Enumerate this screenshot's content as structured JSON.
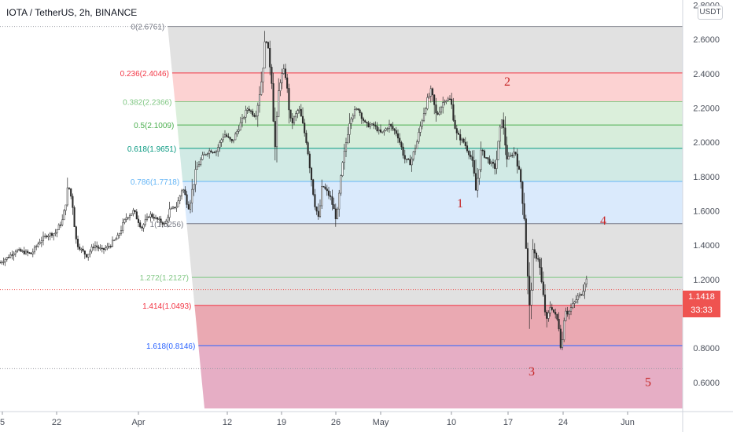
{
  "header": {
    "symbol": "IOTA / TetherUS, 2h, BINANCE"
  },
  "currency_button": "USDT",
  "price_label": {
    "price": "1.1418",
    "countdown": "33:33",
    "color": "#ef5350"
  },
  "chart_data": {
    "type": "candlestick",
    "symbol": "IOTA / TetherUS",
    "interval": "2h",
    "exchange": "BINANCE",
    "x_ticks": [
      "5",
      "22",
      "Apr",
      "12",
      "19",
      "26",
      "May",
      "10",
      "17",
      "24",
      "Jun"
    ],
    "y_ticks": [
      "2.8000",
      "2.6000",
      "2.4000",
      "2.2000",
      "2.0000",
      "1.8000",
      "1.6000",
      "1.4000",
      "1.2000",
      "1.0000",
      "0.8000",
      "0.6000"
    ],
    "ylim": [
      0.43,
      2.83
    ],
    "last_price": 1.1418,
    "price_path": [
      [
        0,
        1.3
      ],
      [
        10,
        1.33
      ],
      [
        20,
        1.37
      ],
      [
        30,
        1.36
      ],
      [
        40,
        1.35
      ],
      [
        50,
        1.42
      ],
      [
        60,
        1.46
      ],
      [
        70,
        1.47
      ],
      [
        80,
        1.55
      ],
      [
        87,
        1.75
      ],
      [
        92,
        1.65
      ],
      [
        97,
        1.42
      ],
      [
        102,
        1.38
      ],
      [
        110,
        1.34
      ],
      [
        120,
        1.4
      ],
      [
        130,
        1.37
      ],
      [
        140,
        1.4
      ],
      [
        150,
        1.45
      ],
      [
        160,
        1.56
      ],
      [
        170,
        1.6
      ],
      [
        180,
        1.5
      ],
      [
        190,
        1.58
      ],
      [
        200,
        1.55
      ],
      [
        210,
        1.52
      ],
      [
        215,
        1.6
      ],
      [
        225,
        1.63
      ],
      [
        232,
        1.74
      ],
      [
        240,
        1.62
      ],
      [
        250,
        1.85
      ],
      [
        258,
        1.92
      ],
      [
        265,
        1.95
      ],
      [
        275,
        1.95
      ],
      [
        285,
        2.05
      ],
      [
        295,
        2.0
      ],
      [
        305,
        2.1
      ],
      [
        315,
        2.2
      ],
      [
        325,
        2.15
      ],
      [
        332,
        2.35
      ],
      [
        338,
        2.62
      ],
      [
        345,
        2.4
      ],
      [
        350,
        1.95
      ],
      [
        355,
        2.35
      ],
      [
        362,
        2.43
      ],
      [
        370,
        2.1
      ],
      [
        380,
        2.2
      ],
      [
        390,
        2.0
      ],
      [
        400,
        1.65
      ],
      [
        405,
        1.55
      ],
      [
        410,
        1.75
      ],
      [
        420,
        1.68
      ],
      [
        428,
        1.55
      ],
      [
        435,
        1.85
      ],
      [
        445,
        2.15
      ],
      [
        455,
        2.2
      ],
      [
        465,
        2.1
      ],
      [
        475,
        2.1
      ],
      [
        485,
        2.05
      ],
      [
        495,
        2.1
      ],
      [
        505,
        2.05
      ],
      [
        515,
        1.9
      ],
      [
        522,
        1.88
      ],
      [
        530,
        2.0
      ],
      [
        540,
        2.2
      ],
      [
        548,
        2.3
      ],
      [
        555,
        2.15
      ],
      [
        565,
        2.25
      ],
      [
        573,
        2.25
      ],
      [
        580,
        2.05
      ],
      [
        590,
        2.0
      ],
      [
        600,
        1.9
      ],
      [
        605,
        1.72
      ],
      [
        612,
        1.95
      ],
      [
        620,
        1.9
      ],
      [
        630,
        1.85
      ],
      [
        638,
        2.15
      ],
      [
        645,
        1.9
      ],
      [
        655,
        1.95
      ],
      [
        662,
        1.78
      ],
      [
        667,
        1.55
      ],
      [
        670,
        1.3
      ],
      [
        673,
        1.0
      ],
      [
        678,
        1.35
      ],
      [
        685,
        1.32
      ],
      [
        690,
        1.12
      ],
      [
        695,
        0.95
      ],
      [
        700,
        1.05
      ],
      [
        705,
        1.0
      ],
      [
        710,
        0.95
      ],
      [
        714,
        0.78
      ],
      [
        718,
        1.05
      ],
      [
        722,
        1.0
      ],
      [
        728,
        1.05
      ],
      [
        735,
        1.1
      ],
      [
        740,
        1.12
      ],
      [
        745,
        1.22
      ],
      [
        748,
        1.14
      ]
    ],
    "fib_retracement": [
      {
        "ratio": "0",
        "price": 2.6761,
        "label": "0(2.6761)",
        "color": "#787b86"
      },
      {
        "ratio": "0.236",
        "price": 2.4046,
        "label": "0.236(2.4046)",
        "color": "#f23645"
      },
      {
        "ratio": "0.382",
        "price": 2.2366,
        "label": "0.382(2.2366)",
        "color": "#81c784"
      },
      {
        "ratio": "0.5",
        "price": 2.1009,
        "label": "0.5(2.1009)",
        "color": "#4caf50"
      },
      {
        "ratio": "0.618",
        "price": 1.9651,
        "label": "0.618(1.9651)",
        "color": "#089981"
      },
      {
        "ratio": "0.786",
        "price": 1.7718,
        "label": "0.786(1.7718)",
        "color": "#64b5f6"
      },
      {
        "ratio": "1",
        "price": 1.5256,
        "label": "1(1.5256)",
        "color": "#787b86"
      },
      {
        "ratio": "1.272",
        "price": 1.2127,
        "label": "1.272(1.2127)",
        "color": "#81c784"
      },
      {
        "ratio": "1.414",
        "price": 1.0493,
        "label": "1.414(1.0493)",
        "color": "#f23645"
      },
      {
        "ratio": "1.618",
        "price": 0.8146,
        "label": "1.618(0.8146)",
        "color": "#2962ff"
      }
    ],
    "wave_labels": [
      {
        "text": "1",
        "x": 585,
        "price": 1.62
      },
      {
        "text": "2",
        "x": 645,
        "price": 2.33
      },
      {
        "text": "3",
        "x": 676,
        "price": 0.64
      },
      {
        "text": "4",
        "x": 767,
        "price": 1.52
      },
      {
        "text": "5",
        "x": 824,
        "price": 0.58
      }
    ]
  }
}
